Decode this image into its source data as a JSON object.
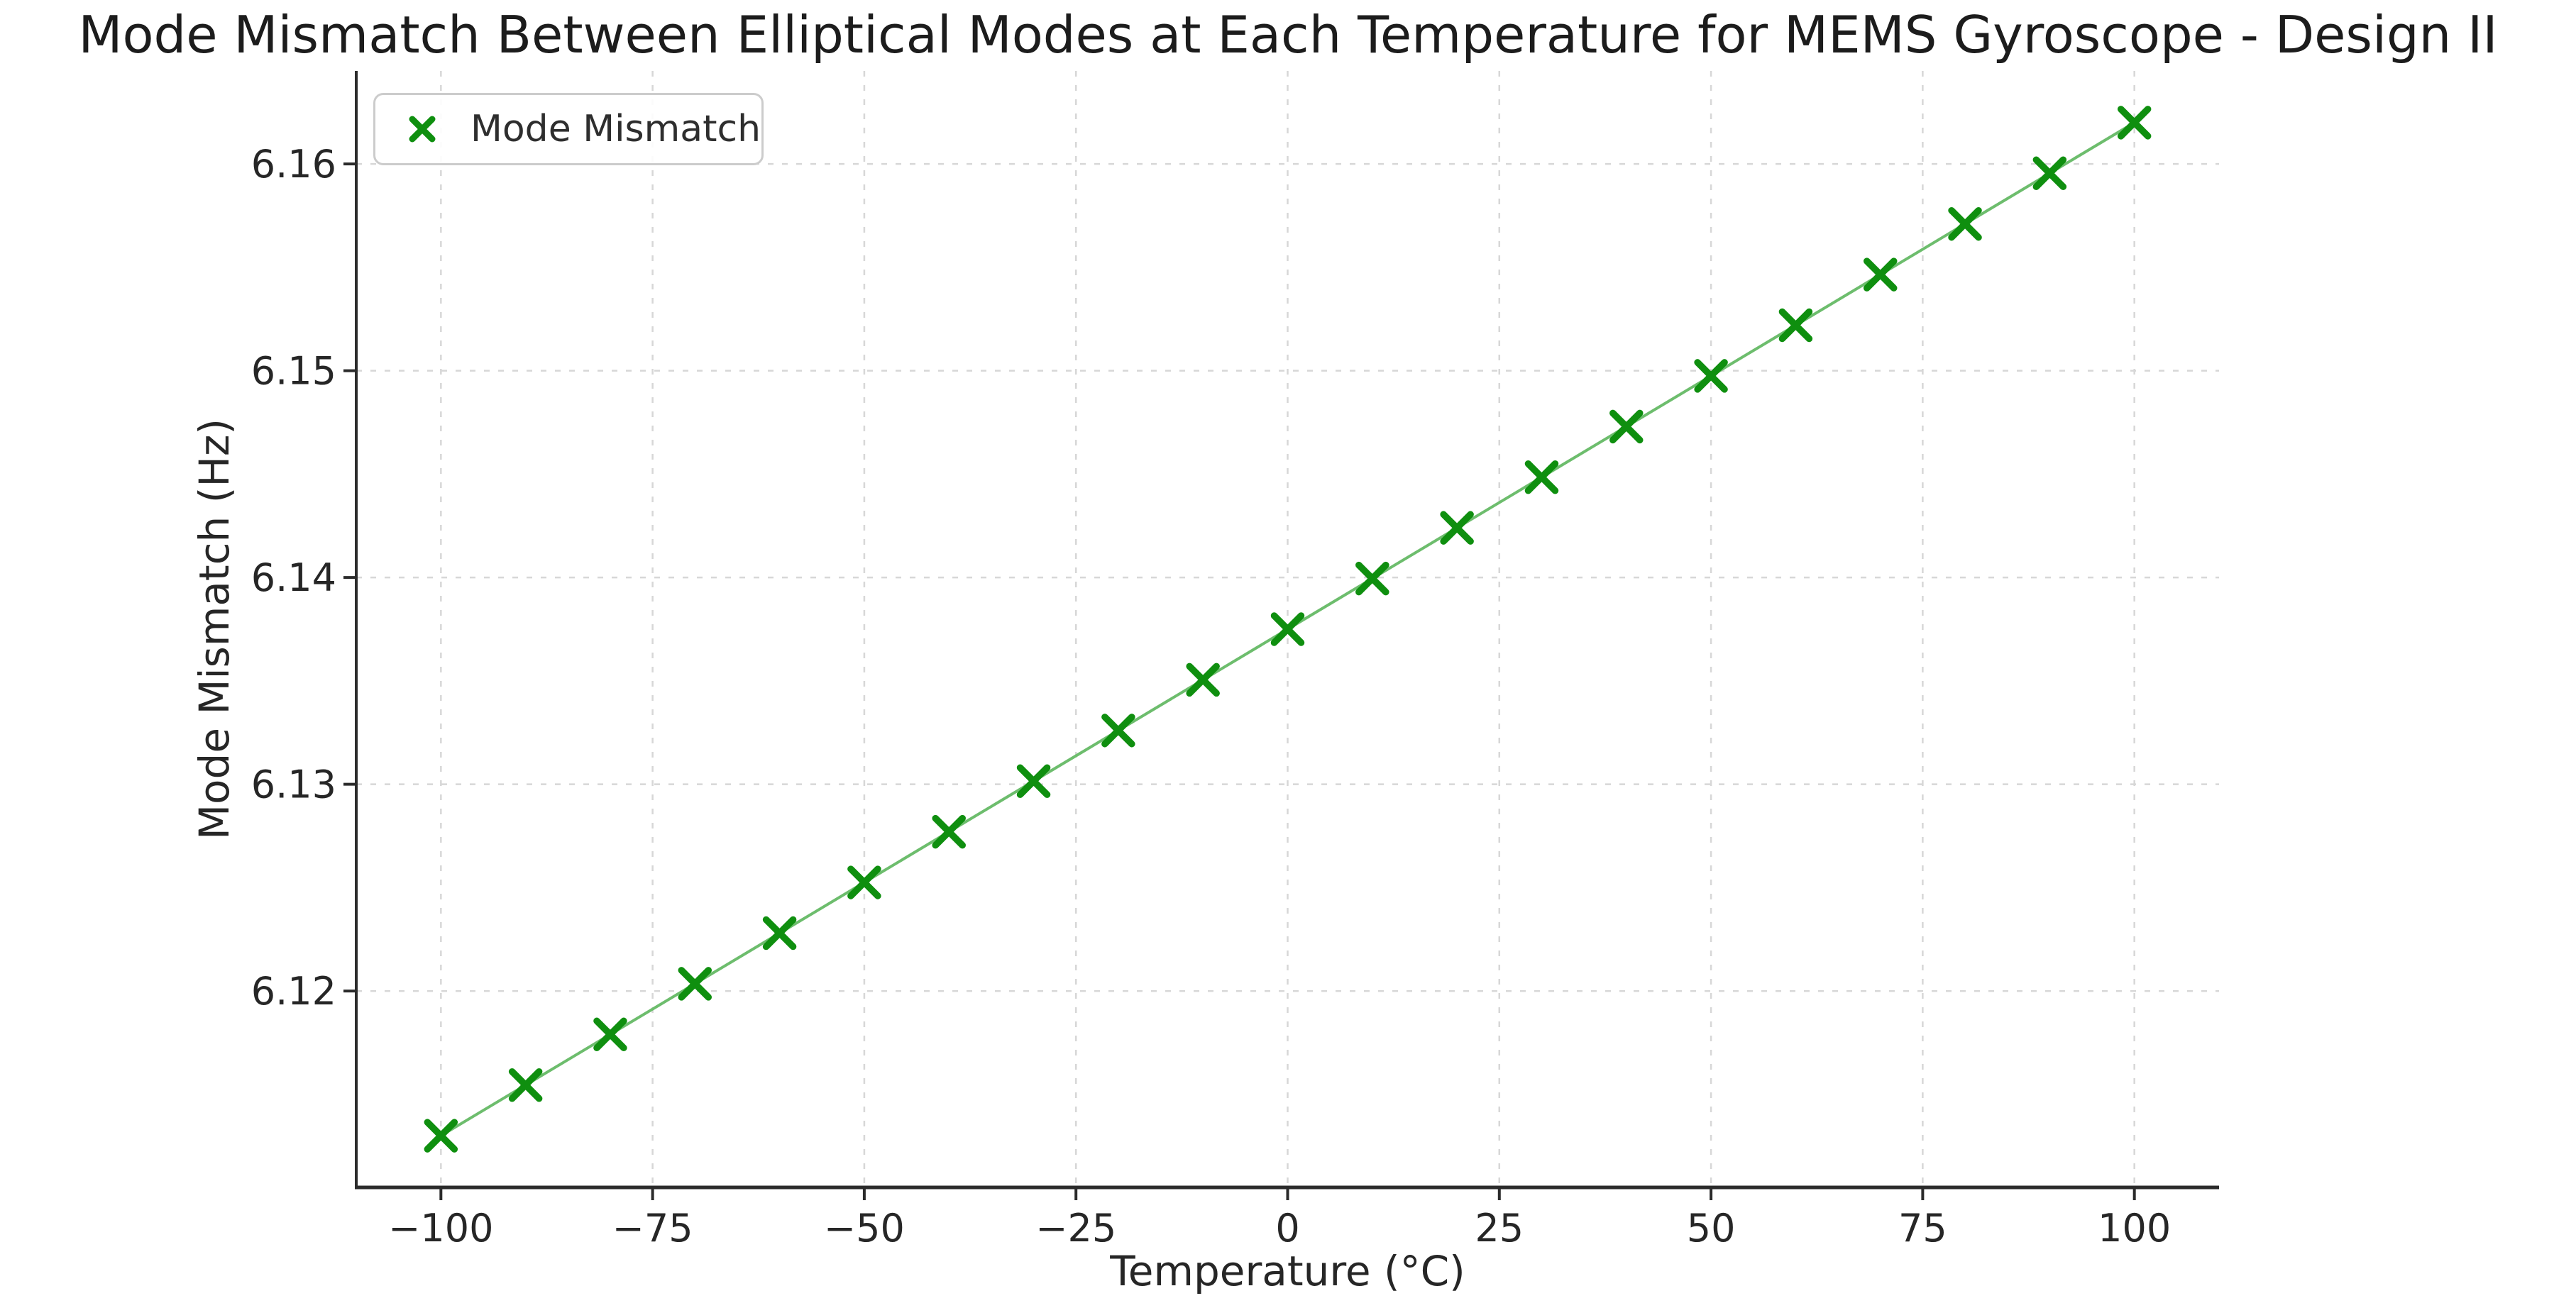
{
  "chart_data": {
    "type": "line",
    "title": "Mode Mismatch Between Elliptical Modes at Each Temperature for MEMS Gyroscope - Design II",
    "xlabel": "Temperature (°C)",
    "ylabel": "Mode Mismatch (Hz)",
    "legend": {
      "position": "upper-left",
      "entries": [
        {
          "label": "Mode Mismatch",
          "marker": "x"
        }
      ]
    },
    "x": [
      -100,
      -90,
      -80,
      -70,
      -60,
      -50,
      -40,
      -30,
      -20,
      -10,
      0,
      10,
      20,
      30,
      40,
      50,
      60,
      70,
      80,
      90,
      100
    ],
    "series": [
      {
        "name": "Mode Mismatch",
        "values": [
          6.113,
          6.11545,
          6.1179,
          6.12035,
          6.1228,
          6.12525,
          6.1277,
          6.13015,
          6.1326,
          6.13505,
          6.1375,
          6.13995,
          6.1424,
          6.14485,
          6.1473,
          6.14975,
          6.1522,
          6.15465,
          6.1571,
          6.15955,
          6.162
        ]
      }
    ],
    "xlim": [
      -110,
      110
    ],
    "ylim": [
      6.1105,
      6.1645
    ],
    "x_ticks": [
      -100,
      -75,
      -50,
      -25,
      0,
      25,
      50,
      75,
      100
    ],
    "x_tick_labels": [
      "−100",
      "−75",
      "−50",
      "−25",
      "0",
      "25",
      "50",
      "75",
      "100"
    ],
    "y_ticks": [
      6.12,
      6.13,
      6.14,
      6.15,
      6.16
    ],
    "y_tick_labels": [
      "6.12",
      "6.13",
      "6.14",
      "6.15",
      "6.16"
    ],
    "grid": true,
    "grid_style": "dashed",
    "marker": "x",
    "colors": {
      "line": "#6dbd6d",
      "marker": "#0f8f0f",
      "grid": "#d7d7d7",
      "spine": "#2b2b2b",
      "text": "#262626",
      "legend_border": "#cccccc",
      "background": "#ffffff"
    }
  }
}
